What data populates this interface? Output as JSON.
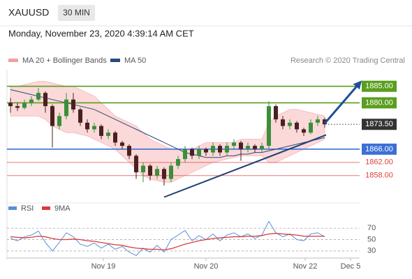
{
  "header": {
    "symbol": "XAUUSD",
    "interval": "30 MIN",
    "timestamp": "Monday, November 23, 2020 4:39:14 AM CET"
  },
  "chart_data": [
    {
      "type": "candlestick",
      "credit": "Research © 2020 Trading Central",
      "up_color": "#3a8f3a",
      "down_color": "#4a2020",
      "open": [
        1880,
        1879,
        1878.5,
        1880,
        1881,
        1883,
        1879,
        1873,
        1876,
        1881,
        1878,
        1874,
        1872,
        1873,
        1870,
        1871,
        1868,
        1867,
        1864,
        1859,
        1861,
        1858,
        1860,
        1857,
        1861,
        1863,
        1866,
        1864,
        1866,
        1865,
        1867,
        1865,
        1867,
        1868,
        1866,
        1867,
        1866,
        1867,
        1879,
        1875,
        1873,
        1874,
        1872,
        1871,
        1874,
        1875
      ],
      "high": [
        1881.5,
        1880,
        1881,
        1882,
        1884.5,
        1883.5,
        1879.5,
        1877,
        1883,
        1883,
        1878.5,
        1875,
        1874,
        1873.5,
        1872,
        1871.5,
        1868.5,
        1867.5,
        1864.5,
        1862,
        1861.5,
        1861,
        1860.5,
        1862,
        1864,
        1867,
        1866.5,
        1867,
        1866.5,
        1868,
        1867.5,
        1868,
        1869,
        1868.5,
        1868,
        1867.5,
        1868,
        1880.5,
        1879.5,
        1876,
        1875,
        1874.5,
        1872.5,
        1875,
        1876,
        1875.5
      ],
      "low": [
        1877,
        1877.5,
        1878,
        1879,
        1880.5,
        1877,
        1866.5,
        1872,
        1875,
        1877,
        1873,
        1871,
        1871,
        1869,
        1869,
        1867,
        1866,
        1863,
        1857,
        1856,
        1856.5,
        1857,
        1855,
        1856,
        1860,
        1862,
        1863,
        1863,
        1864,
        1864,
        1864,
        1864,
        1866,
        1862.5,
        1865,
        1865,
        1865,
        1866,
        1874,
        1872,
        1872,
        1871,
        1870,
        1870.5,
        1873,
        1872.5
      ],
      "close": [
        1879,
        1878.5,
        1880,
        1881,
        1883,
        1879,
        1873,
        1876,
        1881,
        1878,
        1874,
        1872,
        1873,
        1870,
        1871,
        1868,
        1867,
        1864,
        1859,
        1861,
        1858,
        1860,
        1857,
        1861,
        1863,
        1866,
        1864,
        1866,
        1865,
        1867,
        1865,
        1867,
        1868,
        1866,
        1867,
        1866,
        1867,
        1879,
        1875,
        1873,
        1874,
        1872,
        1871,
        1874,
        1875,
        1873.5
      ],
      "bands": {
        "name": "MA 20 + Bollinger Bands",
        "color": "#f4a0a0",
        "upper": [
          1885,
          1885,
          1885.5,
          1886,
          1886.5,
          1886.5,
          1886,
          1885.5,
          1885,
          1885,
          1884,
          1883,
          1882,
          1880,
          1878,
          1876,
          1875,
          1874,
          1873,
          1871,
          1869,
          1868,
          1867,
          1866,
          1866,
          1866,
          1866,
          1867,
          1868,
          1868,
          1868,
          1868,
          1868,
          1869,
          1869,
          1869,
          1869,
          1874,
          1876,
          1877,
          1878,
          1878,
          1877.5,
          1877,
          1876.5,
          1876
        ],
        "lower": [
          1876,
          1876,
          1876,
          1876,
          1876,
          1875,
          1873,
          1872,
          1871,
          1871,
          1870.5,
          1870,
          1869,
          1868,
          1867,
          1866,
          1864,
          1862,
          1860,
          1858,
          1857,
          1856.5,
          1856,
          1856,
          1857,
          1858,
          1859,
          1860,
          1861,
          1862,
          1862.5,
          1863,
          1863.5,
          1864,
          1864,
          1864,
          1864,
          1862,
          1862,
          1863,
          1864,
          1865,
          1866,
          1867,
          1868,
          1869
        ]
      },
      "series": [
        {
          "name": "MA 50",
          "color": "#2b4a7a",
          "values": [
            1884,
            1883.5,
            1883,
            1882.5,
            1882,
            1881.5,
            1881,
            1880.5,
            1880,
            1879.5,
            1879,
            1878.5,
            1878,
            1877,
            1876,
            1875,
            1874,
            1873,
            1872,
            1871,
            1870,
            1869,
            1868,
            1867,
            1866,
            1865,
            1864.5,
            1864,
            1863.5,
            1863.5,
            1863.5,
            1864,
            1864,
            1864.5,
            1864.5,
            1865,
            1865,
            1865.5,
            1866,
            1866.5,
            1867,
            1867.5,
            1868,
            1868.5,
            1869,
            1869.5
          ]
        }
      ],
      "levels": [
        {
          "value": 1885,
          "label": "1885.00",
          "color": "#5a9e1e",
          "boxed": true
        },
        {
          "value": 1880,
          "label": "1880.00",
          "color": "#5a9e1e",
          "boxed": true
        },
        {
          "value": 1866,
          "label": "1866.00",
          "color": "#3b6fd6",
          "boxed": true
        },
        {
          "value": 1862,
          "label": "1862.00",
          "color": "#e0403a",
          "boxed": false
        },
        {
          "value": 1858,
          "label": "1858.00",
          "color": "#e0403a",
          "boxed": false
        }
      ],
      "last_price": {
        "value": 1873.5,
        "label": "1873.50",
        "color": "#333333"
      },
      "trendline": {
        "x": [
          22,
          45.2
        ],
        "y": [
          1851.5,
          1870.3
        ],
        "color": "#1f3f7a"
      },
      "arrow": {
        "x": [
          45,
          50
        ],
        "y": [
          1873.8,
          1886
        ],
        "color": "#1f4f9a"
      },
      "xlim": [
        -0.5,
        49.5
      ],
      "ylim": [
        1851,
        1890
      ]
    },
    {
      "type": "line",
      "series": [
        {
          "name": "RSI",
          "color": "#5b8fd6",
          "values": [
            52,
            48,
            55,
            58,
            65,
            45,
            30,
            45,
            62,
            55,
            42,
            38,
            44,
            35,
            42,
            33,
            38,
            28,
            22,
            35,
            28,
            40,
            28,
            50,
            58,
            66,
            48,
            57,
            50,
            60,
            48,
            58,
            62,
            55,
            60,
            52,
            58,
            82,
            62,
            55,
            60,
            50,
            48,
            60,
            62,
            55
          ]
        },
        {
          "name": "9MA",
          "color": "#d93b3b",
          "values": [
            55,
            54,
            53,
            54,
            56,
            55,
            52,
            50,
            50,
            51,
            50,
            48,
            47,
            45,
            43,
            41,
            40,
            37,
            35,
            34,
            33,
            33,
            32,
            34,
            38,
            42,
            45,
            48,
            50,
            52,
            53,
            54,
            55,
            55,
            56,
            56,
            57,
            60,
            61,
            60,
            59,
            58,
            56,
            56,
            56,
            56
          ]
        }
      ],
      "xlim": [
        -0.5,
        49.5
      ],
      "ylim": [
        20,
        96
      ],
      "yticks": [
        30,
        50,
        70
      ],
      "xticks": [
        {
          "value": 13.3,
          "label": "Nov 19"
        },
        {
          "value": 28,
          "label": "Nov 20"
        },
        {
          "value": 42.2,
          "label": "Nov 22"
        },
        {
          "value": 48.7,
          "label": "Dec 5"
        }
      ]
    }
  ]
}
